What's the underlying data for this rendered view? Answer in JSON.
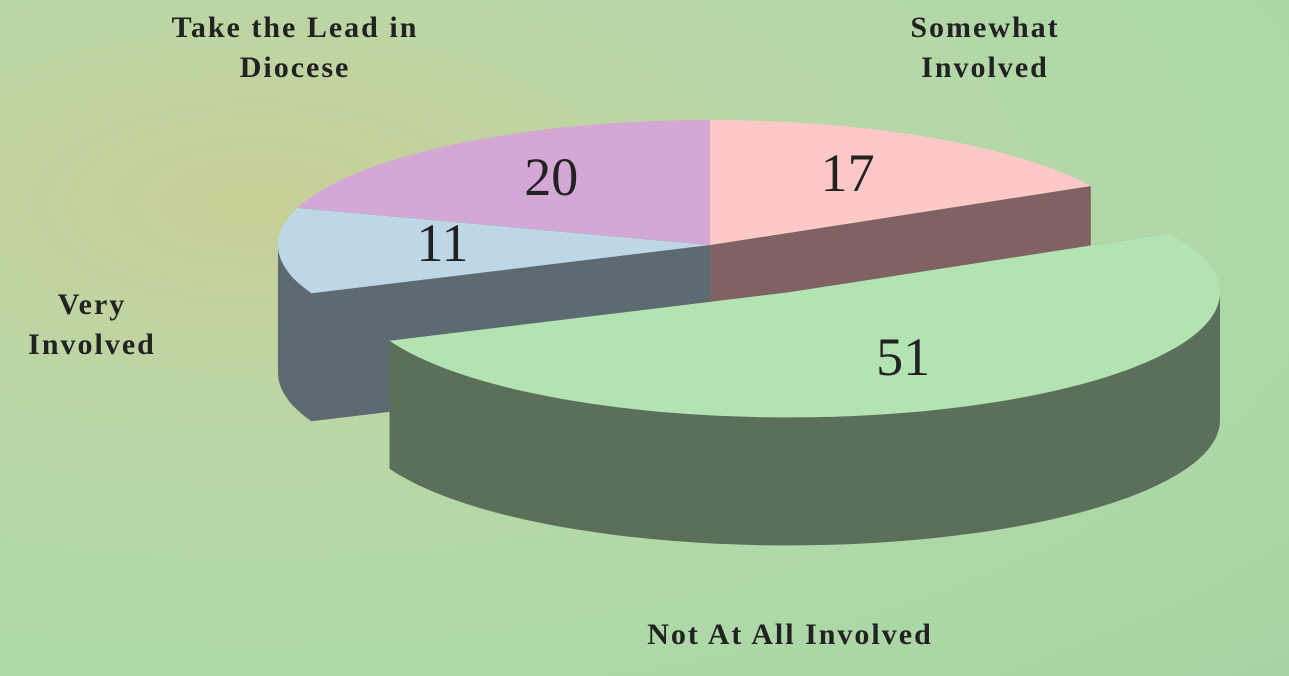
{
  "chart_data": {
    "type": "pie3d",
    "categories": [
      "Somewhat Involved",
      "Not At All Involved",
      "Very Involved",
      "Take the Lead in Diocese"
    ],
    "values": [
      17,
      51,
      11,
      20
    ],
    "colors": [
      "#ffc8c8",
      "#b3e3b3",
      "#bdd7e7",
      "#d4a8d4"
    ],
    "side_colors": [
      "#806262",
      "#5b6f5a",
      "#5e6a72",
      "#6e586e"
    ],
    "exploded": [
      false,
      true,
      false,
      false
    ]
  }
}
